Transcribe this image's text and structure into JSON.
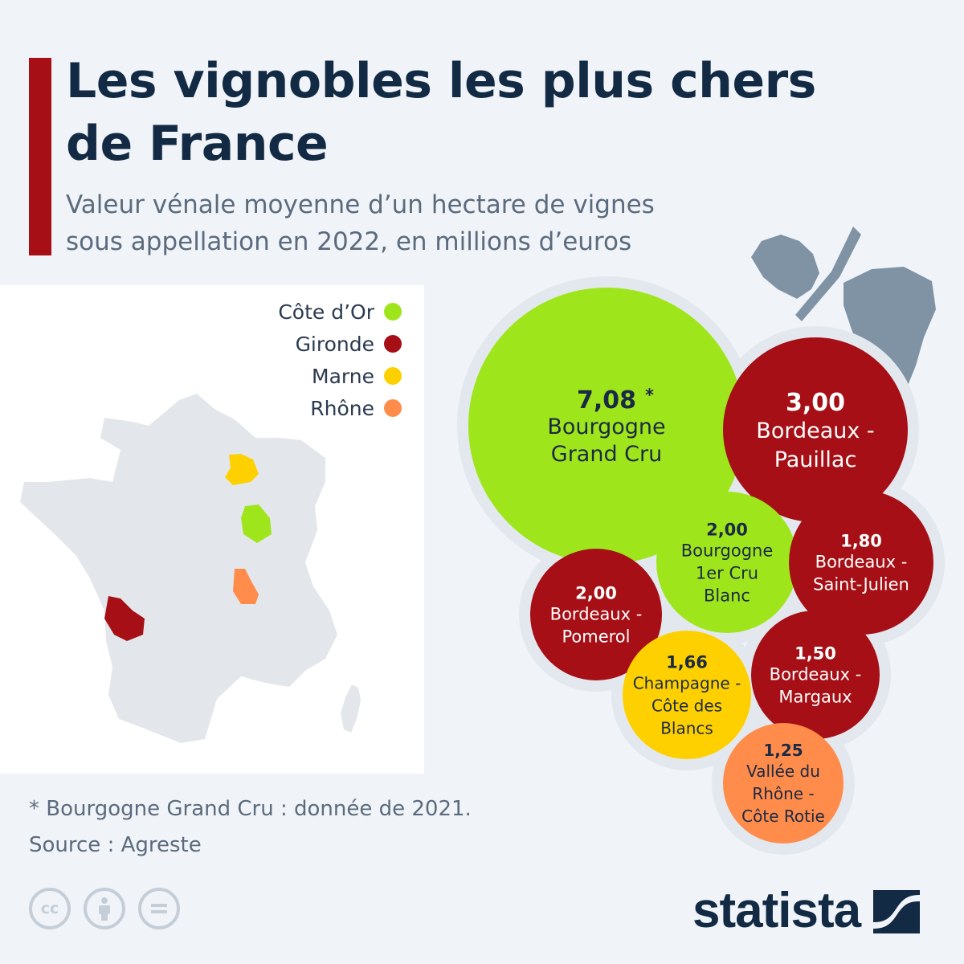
{
  "title_line1": "Les vignobles les plus chers",
  "title_line2": "de France",
  "subtitle_line1": "Valeur vénale moyenne d’un hectare de vignes",
  "subtitle_line2": "sous appellation en 2022, en millions d’euros",
  "legend": [
    {
      "label": "Côte d’Or",
      "color": "#9fe51c"
    },
    {
      "label": "Gironde",
      "color": "#a50f15"
    },
    {
      "label": "Marne",
      "color": "#ffd000"
    },
    {
      "label": "Rhône",
      "color": "#ff8c4b"
    }
  ],
  "footnote": "* Bourgogne Grand Cru : donnée de 2021.",
  "source": "Source : Agreste",
  "brand": "statista",
  "license_icons": [
    "cc-icon",
    "attribution-icon",
    "no-derivatives-icon"
  ],
  "chart_data": {
    "type": "bubble",
    "title": "Les vignobles les plus chers de France",
    "subtitle": "Valeur vénale moyenne d’un hectare de vignes sous appellation en 2022, en millions d’euros",
    "series": [
      {
        "name": "Bourgogne Grand Cru",
        "value": 7.08,
        "value_label": "7,08",
        "marker": "*",
        "label_lines": [
          "Bourgogne",
          "Grand Cru"
        ],
        "region": "Côte d’Or"
      },
      {
        "name": "Bordeaux - Pauillac",
        "value": 3.0,
        "value_label": "3,00",
        "label_lines": [
          "Bordeaux -",
          "Pauillac"
        ],
        "region": "Gironde"
      },
      {
        "name": "Bourgogne 1er Cru Blanc",
        "value": 2.0,
        "value_label": "2,00",
        "label_lines": [
          "Bourgogne",
          "1er Cru",
          "Blanc"
        ],
        "region": "Côte d’Or"
      },
      {
        "name": "Bordeaux - Saint-Julien",
        "value": 1.8,
        "value_label": "1,80",
        "label_lines": [
          "Bordeaux -",
          "Saint-Julien"
        ],
        "region": "Gironde"
      },
      {
        "name": "Bordeaux - Pomerol",
        "value": 2.0,
        "value_label": "2,00",
        "label_lines": [
          "Bordeaux -",
          "Pomerol"
        ],
        "region": "Gironde"
      },
      {
        "name": "Bordeaux - Margaux",
        "value": 1.5,
        "value_label": "1,50",
        "label_lines": [
          "Bordeaux -",
          "Margaux"
        ],
        "region": "Gironde"
      },
      {
        "name": "Champagne - Côte des Blancs",
        "value": 1.66,
        "value_label": "1,66",
        "label_lines": [
          "Champagne -",
          "Côte des",
          "Blancs"
        ],
        "region": "Marne"
      },
      {
        "name": "Vallée du Rhône - Côte Rotie",
        "value": 1.25,
        "value_label": "1,25",
        "label_lines": [
          "Vallée du",
          "Rhône -",
          "Côte Rotie"
        ],
        "region": "Rhône"
      }
    ],
    "map_regions": [
      "Côte d’Or",
      "Gironde",
      "Marne",
      "Rhône"
    ],
    "note": "* Bourgogne Grand Cru : donnée de 2021.",
    "source": "Source : Agreste"
  }
}
